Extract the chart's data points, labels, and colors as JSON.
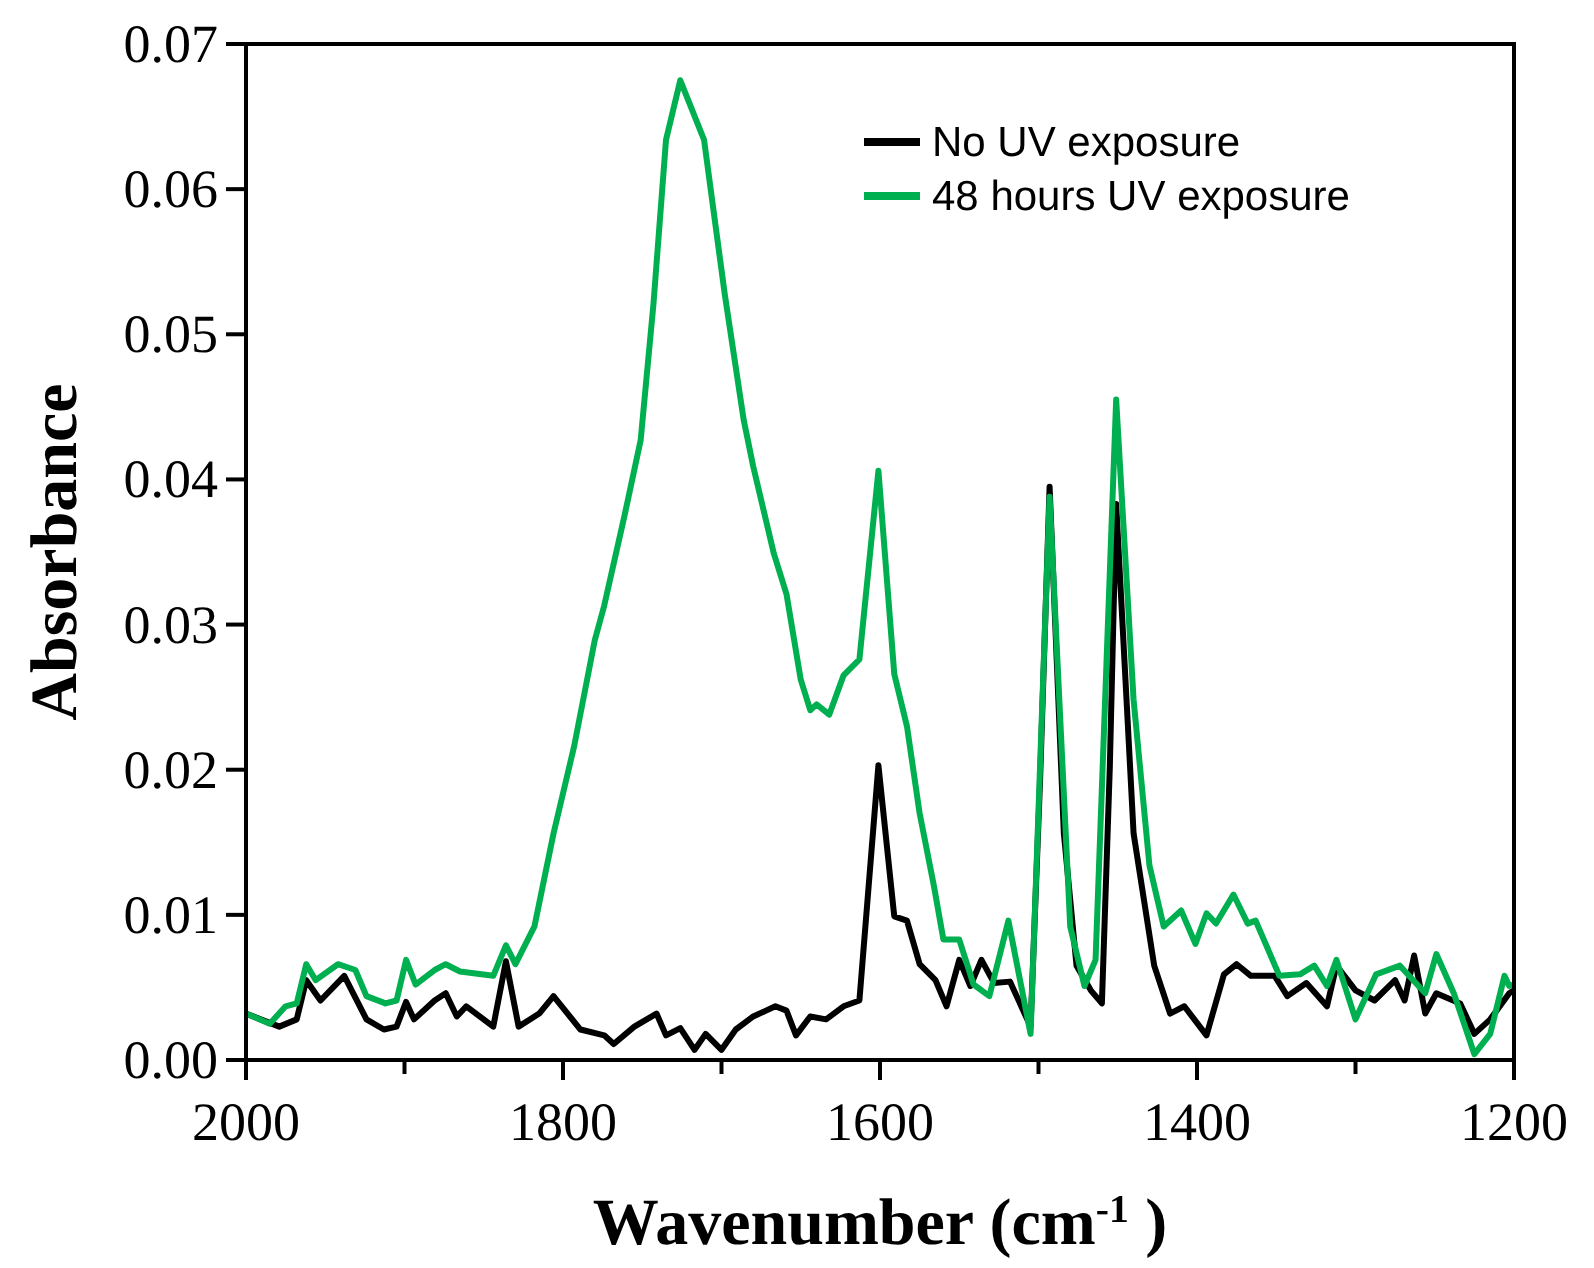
{
  "chart_data": {
    "type": "line",
    "xlabel": "Wavenumber (cm$^{-1}$ )",
    "ylabel": "Absorbance",
    "xlim": [
      2000,
      1200
    ],
    "xticks": [
      2000,
      {
        "value": 1900,
        "label": null
      },
      1800,
      {
        "value": 1700,
        "label": null
      },
      1600,
      {
        "value": 1500,
        "label": null
      },
      1400,
      {
        "value": 1300,
        "label": null
      },
      1200
    ],
    "ylim": [
      0,
      0.07
    ],
    "yticks": [
      {
        "value": 0,
        "label": "0.00"
      },
      {
        "value": 0.01,
        "label": "0.01"
      },
      {
        "value": 0.02,
        "label": "0.02"
      },
      {
        "value": 0.03,
        "label": "0.03"
      },
      {
        "value": 0.04,
        "label": "0.04"
      },
      {
        "value": 0.05,
        "label": "0.05"
      },
      {
        "value": 0.06,
        "label": "0.06"
      },
      {
        "value": 0.07,
        "label": "0.07"
      }
    ],
    "grid": false,
    "legend": "top right",
    "marker": "none",
    "line_style": "solid",
    "series": [
      {
        "name": "No UV exposure",
        "color": "#000000",
        "x": [
          2000,
          1979,
          1968,
          1962,
          1953,
          1938,
          1924,
          1913,
          1905,
          1899,
          1894,
          1881,
          1874,
          1867,
          1861,
          1844,
          1836,
          1828,
          1815,
          1806,
          1789,
          1774,
          1768,
          1755,
          1741,
          1735,
          1726,
          1717,
          1710,
          1700,
          1691,
          1680,
          1666,
          1659,
          1653,
          1644,
          1634,
          1623,
          1613,
          1601,
          1591,
          1583,
          1575,
          1565,
          1558,
          1550,
          1543,
          1536,
          1528,
          1518,
          1505,
          1499,
          1493,
          1484,
          1476,
          1467,
          1460,
          1455,
          1451,
          1440,
          1427,
          1417,
          1408,
          1394,
          1383,
          1375,
          1366,
          1351,
          1343,
          1331,
          1318,
          1312,
          1300,
          1288,
          1275,
          1269,
          1263,
          1256,
          1249,
          1234,
          1225,
          1215,
          1203,
          1200
        ],
        "values": [
          0.0032,
          0.0023,
          0.0028,
          0.0055,
          0.0041,
          0.0058,
          0.0028,
          0.0021,
          0.0023,
          0.004,
          0.0028,
          0.0041,
          0.0046,
          0.003,
          0.0037,
          0.0023,
          0.0068,
          0.0023,
          0.0032,
          0.0044,
          0.0021,
          0.0017,
          0.0011,
          0.0023,
          0.0032,
          0.0017,
          0.0022,
          0.0007,
          0.0018,
          0.0007,
          0.0021,
          0.003,
          0.0037,
          0.0034,
          0.0017,
          0.003,
          0.0028,
          0.0037,
          0.0041,
          0.0203,
          0.0099,
          0.0096,
          0.0066,
          0.0055,
          0.0037,
          0.0069,
          0.0051,
          0.0069,
          0.0053,
          0.0054,
          0.0023,
          0.0193,
          0.0395,
          0.0156,
          0.0065,
          0.0048,
          0.0039,
          0.0202,
          0.0383,
          0.0156,
          0.0065,
          0.0032,
          0.0037,
          0.0017,
          0.0059,
          0.0066,
          0.0058,
          0.0058,
          0.0044,
          0.0053,
          0.0037,
          0.0065,
          0.0048,
          0.0041,
          0.0055,
          0.0041,
          0.0072,
          0.0032,
          0.0046,
          0.0039,
          0.0018,
          0.0028,
          0.0046,
          0.0048
        ]
      },
      {
        "name": "48 hours UV exposure",
        "color": "#00b050",
        "x": [
          2000,
          1985,
          1975,
          1968,
          1962,
          1956,
          1942,
          1931,
          1924,
          1912,
          1905,
          1899,
          1893,
          1881,
          1874,
          1865,
          1844,
          1836,
          1830,
          1818,
          1806,
          1793,
          1780,
          1774,
          1761,
          1751,
          1743,
          1735,
          1726,
          1711,
          1698,
          1686,
          1680,
          1667,
          1659,
          1650,
          1644,
          1640,
          1632,
          1623,
          1613,
          1601,
          1591,
          1583,
          1575,
          1566,
          1560,
          1550,
          1541,
          1531,
          1519,
          1505,
          1493,
          1480,
          1471,
          1464,
          1451,
          1440,
          1430,
          1421,
          1410,
          1401,
          1394,
          1388,
          1377,
          1368,
          1363,
          1348,
          1335,
          1326,
          1318,
          1312,
          1300,
          1287,
          1272,
          1256,
          1249,
          1238,
          1225,
          1215,
          1206,
          1203,
          1200
        ],
        "values": [
          0.0032,
          0.0025,
          0.0037,
          0.0039,
          0.0066,
          0.0055,
          0.0066,
          0.0062,
          0.0044,
          0.0039,
          0.0041,
          0.0069,
          0.0052,
          0.0062,
          0.0066,
          0.0061,
          0.0058,
          0.0079,
          0.0066,
          0.0092,
          0.0156,
          0.0216,
          0.0289,
          0.0313,
          0.0376,
          0.0427,
          0.052,
          0.0634,
          0.0675,
          0.0634,
          0.0528,
          0.0441,
          0.0409,
          0.0349,
          0.0321,
          0.0262,
          0.0241,
          0.0245,
          0.0238,
          0.0265,
          0.0276,
          0.0406,
          0.0266,
          0.023,
          0.017,
          0.012,
          0.0083,
          0.0083,
          0.0052,
          0.0044,
          0.0096,
          0.0018,
          0.0388,
          0.0092,
          0.0051,
          0.0069,
          0.0455,
          0.0248,
          0.0134,
          0.0092,
          0.0103,
          0.008,
          0.0101,
          0.0094,
          0.0114,
          0.0094,
          0.0096,
          0.0058,
          0.0059,
          0.0065,
          0.0051,
          0.0069,
          0.0028,
          0.0059,
          0.0065,
          0.0046,
          0.0073,
          0.0046,
          0.0004,
          0.0018,
          0.0058,
          0.0051,
          0.0052
        ]
      }
    ]
  }
}
